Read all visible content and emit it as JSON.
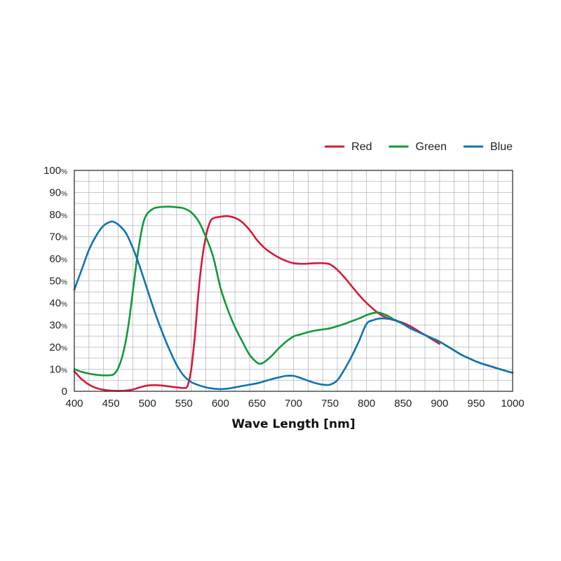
{
  "chart_data": {
    "type": "line",
    "xlabel": "Wave Length [nm]",
    "ylabel": "",
    "xlim": [
      400,
      1000
    ],
    "ylim": [
      0,
      100
    ],
    "x_ticks": [
      400,
      450,
      500,
      550,
      600,
      650,
      700,
      750,
      800,
      850,
      900,
      950,
      1000
    ],
    "y_ticks": [
      {
        "value": 0,
        "label": "0",
        "suffix": ""
      },
      {
        "value": 10,
        "label": "10",
        "suffix": "%"
      },
      {
        "value": 20,
        "label": "20",
        "suffix": "%"
      },
      {
        "value": 30,
        "label": "30",
        "suffix": "%"
      },
      {
        "value": 40,
        "label": "40",
        "suffix": "%"
      },
      {
        "value": 50,
        "label": "50",
        "suffix": "%"
      },
      {
        "value": 60,
        "label": "60",
        "suffix": "%"
      },
      {
        "value": 70,
        "label": "70",
        "suffix": "%"
      },
      {
        "value": 80,
        "label": "80",
        "suffix": "%"
      },
      {
        "value": 90,
        "label": "90",
        "suffix": "%"
      },
      {
        "value": 100,
        "label": "100",
        "suffix": "%"
      }
    ],
    "grid": true,
    "legend_position": "top-right",
    "series": [
      {
        "name": "Red",
        "color": "#d7193a",
        "points": [
          [
            400,
            9
          ],
          [
            410,
            5.5
          ],
          [
            420,
            3
          ],
          [
            430,
            1.5
          ],
          [
            440,
            0.7
          ],
          [
            450,
            0.3
          ],
          [
            460,
            0.2
          ],
          [
            470,
            0.3
          ],
          [
            480,
            0.8
          ],
          [
            490,
            1.8
          ],
          [
            500,
            2.6
          ],
          [
            510,
            2.8
          ],
          [
            520,
            2.6
          ],
          [
            530,
            2.2
          ],
          [
            540,
            1.8
          ],
          [
            550,
            1.5
          ],
          [
            555,
            2.5
          ],
          [
            560,
            10
          ],
          [
            565,
            25
          ],
          [
            570,
            45
          ],
          [
            575,
            60
          ],
          [
            580,
            70
          ],
          [
            585,
            76
          ],
          [
            590,
            78.3
          ],
          [
            600,
            79
          ],
          [
            610,
            79.3
          ],
          [
            620,
            78.5
          ],
          [
            630,
            76.5
          ],
          [
            640,
            73
          ],
          [
            650,
            68.5
          ],
          [
            660,
            65
          ],
          [
            670,
            62.5
          ],
          [
            680,
            60.5
          ],
          [
            690,
            59
          ],
          [
            700,
            58
          ],
          [
            710,
            57.7
          ],
          [
            720,
            57.8
          ],
          [
            730,
            58
          ],
          [
            740,
            58
          ],
          [
            750,
            57.5
          ],
          [
            760,
            55
          ],
          [
            770,
            51.5
          ],
          [
            780,
            47.5
          ],
          [
            790,
            43.5
          ],
          [
            800,
            40
          ],
          [
            810,
            37
          ],
          [
            820,
            34.5
          ],
          [
            830,
            33
          ],
          [
            840,
            32
          ],
          [
            850,
            31
          ],
          [
            860,
            29.5
          ],
          [
            870,
            27.5
          ],
          [
            880,
            25.5
          ],
          [
            890,
            23.5
          ],
          [
            900,
            21.5
          ]
        ]
      },
      {
        "name": "Green",
        "color": "#0f9a3c",
        "points": [
          [
            400,
            10
          ],
          [
            410,
            8.8
          ],
          [
            420,
            8
          ],
          [
            430,
            7.5
          ],
          [
            440,
            7.2
          ],
          [
            450,
            7.3
          ],
          [
            455,
            8
          ],
          [
            460,
            10.5
          ],
          [
            465,
            15
          ],
          [
            470,
            22
          ],
          [
            475,
            32
          ],
          [
            480,
            45
          ],
          [
            485,
            58
          ],
          [
            490,
            69
          ],
          [
            495,
            77
          ],
          [
            500,
            80.5
          ],
          [
            505,
            82
          ],
          [
            510,
            83
          ],
          [
            520,
            83.5
          ],
          [
            530,
            83.6
          ],
          [
            540,
            83.3
          ],
          [
            550,
            82.8
          ],
          [
            560,
            81
          ],
          [
            570,
            77
          ],
          [
            580,
            70
          ],
          [
            590,
            61
          ],
          [
            600,
            47
          ],
          [
            610,
            37
          ],
          [
            620,
            29
          ],
          [
            630,
            22.5
          ],
          [
            640,
            16.5
          ],
          [
            650,
            13
          ],
          [
            655,
            12.5
          ],
          [
            660,
            13.2
          ],
          [
            670,
            16
          ],
          [
            680,
            19.5
          ],
          [
            690,
            22.5
          ],
          [
            700,
            24.8
          ],
          [
            710,
            25.8
          ],
          [
            720,
            26.8
          ],
          [
            730,
            27.5
          ],
          [
            740,
            28
          ],
          [
            750,
            28.5
          ],
          [
            760,
            29.5
          ],
          [
            770,
            30.5
          ],
          [
            780,
            31.8
          ],
          [
            790,
            33
          ],
          [
            800,
            34.5
          ],
          [
            810,
            35.5
          ],
          [
            815,
            35.7
          ],
          [
            820,
            35.4
          ],
          [
            830,
            34
          ],
          [
            840,
            32
          ],
          [
            850,
            30.5
          ],
          [
            860,
            28.5
          ],
          [
            870,
            27
          ],
          [
            880,
            25.5
          ],
          [
            890,
            24
          ],
          [
            900,
            22.5
          ],
          [
            910,
            20.5
          ],
          [
            920,
            18.5
          ],
          [
            930,
            16.5
          ],
          [
            940,
            15
          ],
          [
            950,
            13.5
          ],
          [
            960,
            12.3
          ],
          [
            970,
            11.3
          ],
          [
            980,
            10.3
          ],
          [
            990,
            9.3
          ],
          [
            1000,
            8.4
          ]
        ]
      },
      {
        "name": "Blue",
        "color": "#0f74ae",
        "points": [
          [
            400,
            46
          ],
          [
            410,
            55
          ],
          [
            420,
            64
          ],
          [
            430,
            70.5
          ],
          [
            440,
            75
          ],
          [
            450,
            76.8
          ],
          [
            455,
            76.5
          ],
          [
            460,
            75.5
          ],
          [
            470,
            72
          ],
          [
            480,
            65
          ],
          [
            490,
            56
          ],
          [
            500,
            46
          ],
          [
            510,
            36
          ],
          [
            520,
            27
          ],
          [
            530,
            19
          ],
          [
            540,
            12
          ],
          [
            550,
            7
          ],
          [
            560,
            4.2
          ],
          [
            570,
            2.8
          ],
          [
            580,
            1.8
          ],
          [
            590,
            1.2
          ],
          [
            600,
            1
          ],
          [
            610,
            1.2
          ],
          [
            620,
            1.8
          ],
          [
            630,
            2.4
          ],
          [
            640,
            3
          ],
          [
            650,
            3.6
          ],
          [
            660,
            4.5
          ],
          [
            670,
            5.5
          ],
          [
            680,
            6.3
          ],
          [
            690,
            7
          ],
          [
            700,
            7
          ],
          [
            710,
            6
          ],
          [
            720,
            4.8
          ],
          [
            730,
            3.7
          ],
          [
            740,
            3
          ],
          [
            750,
            3
          ],
          [
            760,
            5
          ],
          [
            770,
            10
          ],
          [
            780,
            16
          ],
          [
            790,
            23
          ],
          [
            800,
            30.5
          ],
          [
            810,
            32.3
          ],
          [
            820,
            33
          ],
          [
            830,
            32.8
          ],
          [
            840,
            32.2
          ],
          [
            850,
            30.5
          ],
          [
            860,
            28.5
          ],
          [
            870,
            27
          ],
          [
            880,
            25.5
          ],
          [
            890,
            24
          ],
          [
            900,
            22.5
          ],
          [
            910,
            20.5
          ],
          [
            920,
            18.5
          ],
          [
            930,
            16.5
          ],
          [
            940,
            15
          ],
          [
            950,
            13.5
          ],
          [
            960,
            12.3
          ],
          [
            970,
            11.3
          ],
          [
            980,
            10.3
          ],
          [
            990,
            9.3
          ],
          [
            1000,
            8.4
          ]
        ]
      }
    ]
  }
}
